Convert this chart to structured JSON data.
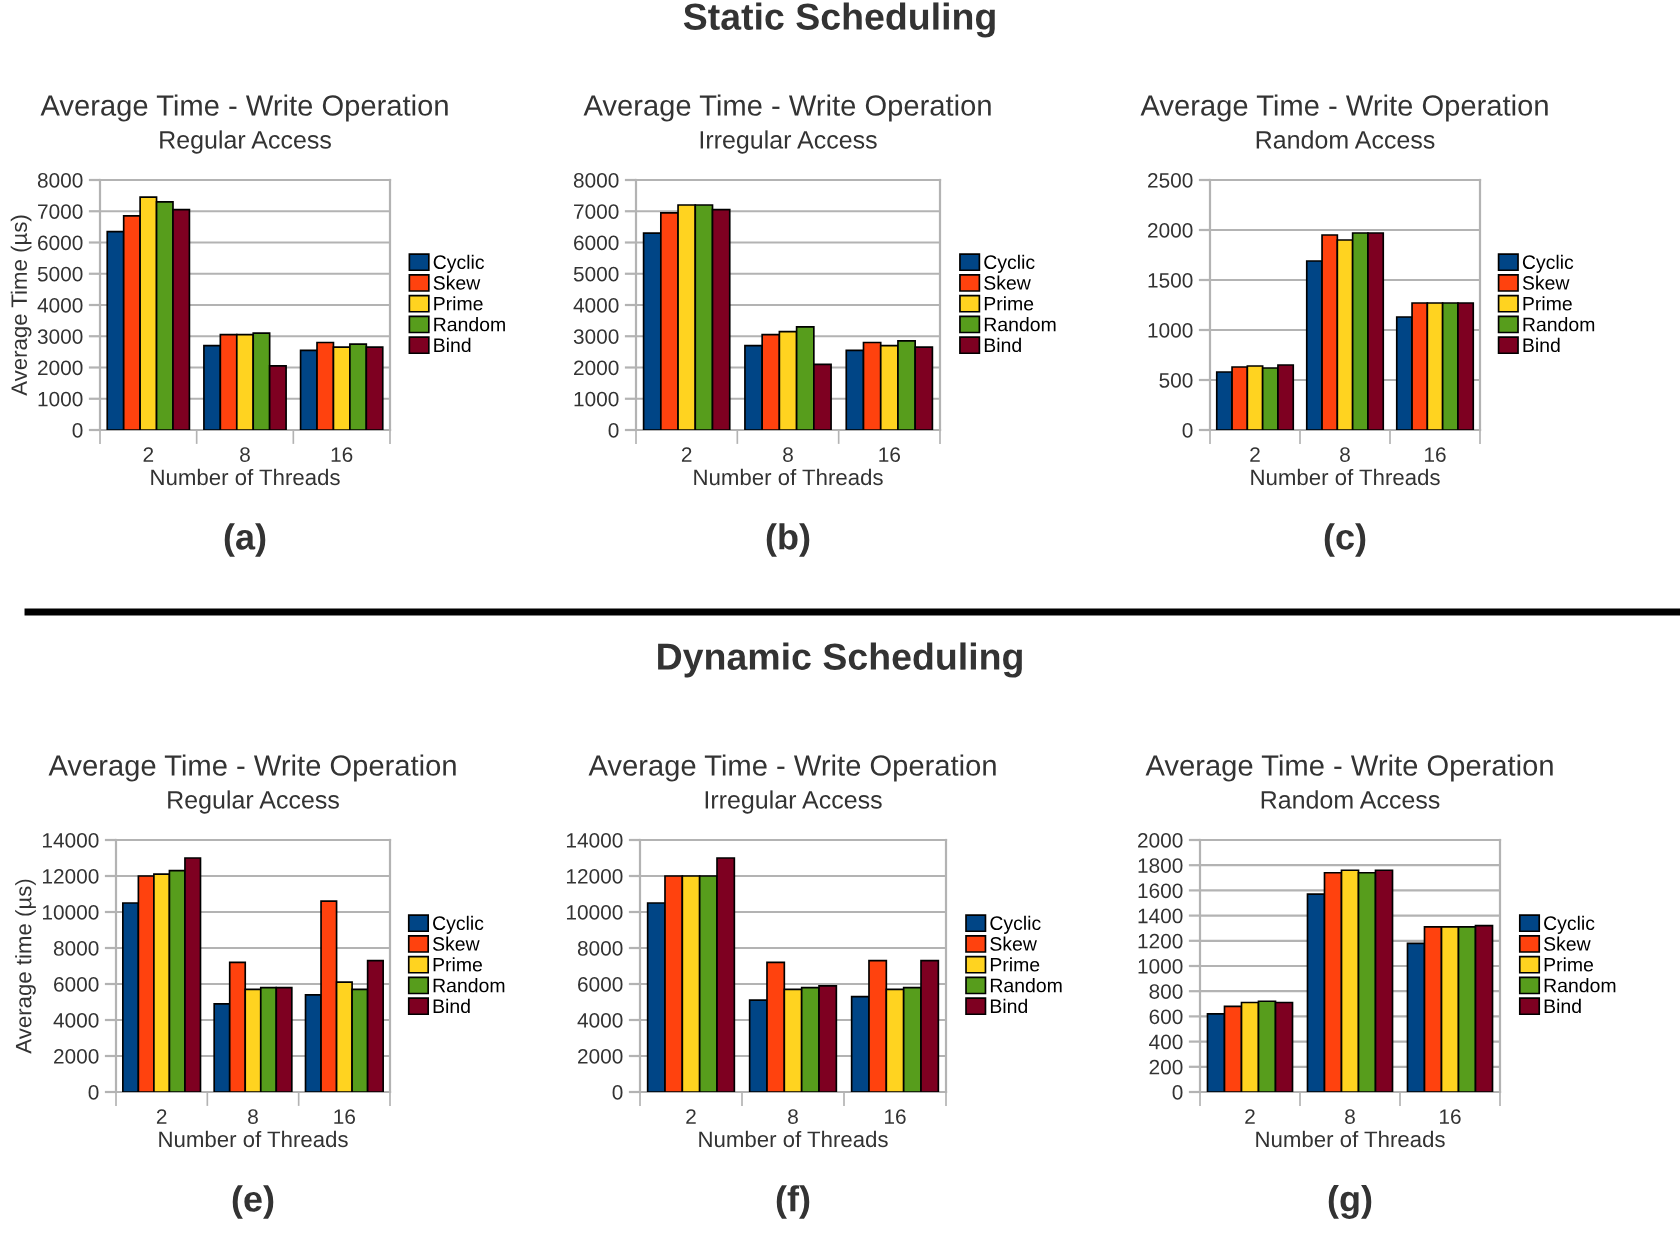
{
  "chart_data": [
    {
      "type": "bar",
      "title": "Average Time - Write Operation",
      "subtitle": "Regular Access",
      "xlabel": "Number of Threads",
      "ylabel": "Average Time (µs)",
      "categories": [
        "2",
        "8",
        "16"
      ],
      "ylim": [
        0,
        8000
      ],
      "yticks": [
        0,
        1000,
        2000,
        3000,
        4000,
        5000,
        6000,
        7000,
        8000
      ],
      "grid": "y",
      "legend": "right",
      "annotations": [
        "Static Scheduling",
        "(a)"
      ],
      "series": [
        {
          "name": "Cyclic",
          "color": "#004586",
          "values": [
            6350,
            2700,
            2550
          ]
        },
        {
          "name": "Skew",
          "color": "#ff420e",
          "values": [
            6850,
            3050,
            2800
          ]
        },
        {
          "name": "Prime",
          "color": "#ffd320",
          "values": [
            7450,
            3050,
            2650
          ]
        },
        {
          "name": "Random",
          "color": "#579d1c",
          "values": [
            7300,
            3100,
            2750
          ]
        },
        {
          "name": "Bind",
          "color": "#7e0021",
          "values": [
            7050,
            2050,
            2650
          ]
        }
      ]
    },
    {
      "type": "bar",
      "title": "Average Time - Write Operation",
      "subtitle": "Irregular Access",
      "xlabel": "Number of Threads",
      "categories": [
        "2",
        "8",
        "16"
      ],
      "ylim": [
        0,
        8000
      ],
      "yticks": [
        0,
        1000,
        2000,
        3000,
        4000,
        5000,
        6000,
        7000,
        8000
      ],
      "grid": "y",
      "legend": "right",
      "annotations": [
        "(b)"
      ],
      "series": [
        {
          "name": "Cyclic",
          "color": "#004586",
          "values": [
            6300,
            2700,
            2550
          ]
        },
        {
          "name": "Skew",
          "color": "#ff420e",
          "values": [
            6950,
            3050,
            2800
          ]
        },
        {
          "name": "Prime",
          "color": "#ffd320",
          "values": [
            7200,
            3150,
            2700
          ]
        },
        {
          "name": "Random",
          "color": "#579d1c",
          "values": [
            7200,
            3300,
            2850
          ]
        },
        {
          "name": "Bind",
          "color": "#7e0021",
          "values": [
            7050,
            2100,
            2650
          ]
        }
      ]
    },
    {
      "type": "bar",
      "title": "Average Time - Write Operation",
      "subtitle": "Random Access",
      "xlabel": "Number of Threads",
      "categories": [
        "2",
        "8",
        "16"
      ],
      "ylim": [
        0,
        2500
      ],
      "yticks": [
        0,
        500,
        1000,
        1500,
        2000,
        2500
      ],
      "grid": "y",
      "legend": "right",
      "annotations": [
        "(c)"
      ],
      "series": [
        {
          "name": "Cyclic",
          "color": "#004586",
          "values": [
            580,
            1690,
            1130
          ]
        },
        {
          "name": "Skew",
          "color": "#ff420e",
          "values": [
            630,
            1950,
            1270
          ]
        },
        {
          "name": "Prime",
          "color": "#ffd320",
          "values": [
            640,
            1900,
            1270
          ]
        },
        {
          "name": "Random",
          "color": "#579d1c",
          "values": [
            620,
            1970,
            1270
          ]
        },
        {
          "name": "Bind",
          "color": "#7e0021",
          "values": [
            650,
            1970,
            1270
          ]
        }
      ]
    },
    {
      "type": "bar",
      "title": "Average Time - Write Operation",
      "subtitle": "Regular Access",
      "xlabel": "Number of Threads",
      "ylabel": "Average time (µs)",
      "categories": [
        "2",
        "8",
        "16"
      ],
      "ylim": [
        0,
        14000
      ],
      "yticks": [
        0,
        2000,
        4000,
        6000,
        8000,
        10000,
        12000,
        14000
      ],
      "grid": "y",
      "legend": "right",
      "annotations": [
        "Dynamic Scheduling",
        "(e)"
      ],
      "series": [
        {
          "name": "Cyclic",
          "color": "#004586",
          "values": [
            10500,
            4900,
            5400
          ]
        },
        {
          "name": "Skew",
          "color": "#ff420e",
          "values": [
            12000,
            7200,
            10600
          ]
        },
        {
          "name": "Prime",
          "color": "#ffd320",
          "values": [
            12100,
            5700,
            6100
          ]
        },
        {
          "name": "Random",
          "color": "#579d1c",
          "values": [
            12300,
            5800,
            5700
          ]
        },
        {
          "name": "Bind",
          "color": "#7e0021",
          "values": [
            13000,
            5800,
            7300
          ]
        }
      ]
    },
    {
      "type": "bar",
      "title": "Average Time - Write Operation",
      "subtitle": "Irregular Access",
      "xlabel": "Number of Threads",
      "categories": [
        "2",
        "8",
        "16"
      ],
      "ylim": [
        0,
        14000
      ],
      "yticks": [
        0,
        2000,
        4000,
        6000,
        8000,
        10000,
        12000,
        14000
      ],
      "grid": "y",
      "legend": "right",
      "annotations": [
        "(f)"
      ],
      "series": [
        {
          "name": "Cyclic",
          "color": "#004586",
          "values": [
            10500,
            5100,
            5300
          ]
        },
        {
          "name": "Skew",
          "color": "#ff420e",
          "values": [
            12000,
            7200,
            7300
          ]
        },
        {
          "name": "Prime",
          "color": "#ffd320",
          "values": [
            12000,
            5700,
            5700
          ]
        },
        {
          "name": "Random",
          "color": "#579d1c",
          "values": [
            12000,
            5800,
            5800
          ]
        },
        {
          "name": "Bind",
          "color": "#7e0021",
          "values": [
            13000,
            5900,
            7300
          ]
        }
      ]
    },
    {
      "type": "bar",
      "title": "Average Time - Write Operation",
      "subtitle": "Random Access",
      "xlabel": "Number of Threads",
      "categories": [
        "2",
        "8",
        "16"
      ],
      "ylim": [
        0,
        2000
      ],
      "yticks": [
        0,
        200,
        400,
        600,
        800,
        1000,
        1200,
        1400,
        1600,
        1800,
        2000
      ],
      "grid": "y",
      "legend": "right",
      "annotations": [
        "(g)"
      ],
      "series": [
        {
          "name": "Cyclic",
          "color": "#004586",
          "values": [
            620,
            1570,
            1180
          ]
        },
        {
          "name": "Skew",
          "color": "#ff420e",
          "values": [
            680,
            1740,
            1310
          ]
        },
        {
          "name": "Prime",
          "color": "#ffd320",
          "values": [
            710,
            1760,
            1310
          ]
        },
        {
          "name": "Random",
          "color": "#579d1c",
          "values": [
            720,
            1740,
            1310
          ]
        },
        {
          "name": "Bind",
          "color": "#7e0021",
          "values": [
            710,
            1760,
            1320
          ]
        }
      ]
    }
  ]
}
